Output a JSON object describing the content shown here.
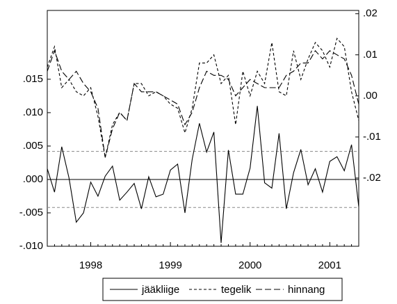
{
  "chart_data": {
    "type": "line",
    "categories": [
      null,
      null,
      null,
      null,
      null,
      null,
      "1998",
      null,
      null,
      null,
      null,
      null,
      null,
      null,
      null,
      null,
      null,
      "1999",
      null,
      null,
      null,
      null,
      null,
      null,
      null,
      null,
      null,
      null,
      "2000",
      null,
      null,
      null,
      null,
      null,
      null,
      null,
      null,
      null,
      null,
      "2001",
      null,
      null,
      null,
      null
    ],
    "series": [
      {
        "name": "jääkliige",
        "color": "#000000",
        "line_style": "solid",
        "axis": "y",
        "values": [
          0.0016,
          -0.0019,
          0.0049,
          0.0002,
          -0.0064,
          -0.005,
          -0.0004,
          -0.0025,
          0.0005,
          0.002,
          -0.0031,
          -0.0019,
          -0.0006,
          -0.0044,
          0.0004,
          -0.0026,
          -0.0022,
          0.0014,
          0.0023,
          -0.005,
          0.003,
          0.0084,
          0.0041,
          0.0071,
          -0.0095,
          0.0044,
          -0.0022,
          -0.0022,
          0.0017,
          0.011,
          -0.0005,
          -0.0013,
          0.0069,
          -0.0044,
          0.001,
          0.0045,
          -0.0008,
          0.0016,
          -0.0019,
          0.0027,
          0.0034,
          0.0013,
          0.0052,
          -0.0041
        ]
      },
      {
        "name": "tegelik",
        "color": "#000000",
        "line_style": "short-dash",
        "axis": "y2",
        "values": [
          0.007,
          0.012,
          0.002,
          0.004,
          0.001,
          0.0,
          0.002,
          -0.005,
          -0.015,
          -0.007,
          -0.004,
          -0.006,
          0.003,
          0.003,
          0.0,
          0.001,
          0.0,
          -0.002,
          -0.003,
          -0.009,
          -0.003,
          0.008,
          0.008,
          0.01,
          0.003,
          0.005,
          -0.007,
          0.006,
          0.0,
          0.006,
          0.003,
          0.013,
          0.001,
          0.0,
          0.011,
          0.004,
          0.009,
          0.013,
          0.011,
          0.007,
          0.014,
          0.012,
          0.001,
          -0.006
        ]
      },
      {
        "name": "hinnang",
        "color": "#000000",
        "line_style": "long-dash",
        "axis": "y2",
        "values": [
          0.006,
          0.011,
          0.006,
          0.004,
          0.006,
          0.003,
          0.001,
          -0.003,
          -0.015,
          -0.008,
          -0.004,
          -0.006,
          0.003,
          0.001,
          0.001,
          0.001,
          0.0,
          -0.001,
          -0.002,
          -0.007,
          -0.004,
          0.002,
          0.006,
          0.005,
          0.005,
          0.004,
          0.0,
          0.002,
          0.004,
          0.003,
          0.002,
          0.002,
          0.002,
          0.005,
          0.006,
          0.008,
          0.008,
          0.011,
          0.009,
          0.011,
          0.01,
          0.009,
          0.005,
          -0.002
        ]
      }
    ],
    "reference_lines": [
      {
        "value": 0.0042,
        "color": "#888888",
        "line_style": "short-dash"
      },
      {
        "value": 0,
        "color": "#000000",
        "line_style": "solid"
      },
      {
        "value": -0.0042,
        "color": "#888888",
        "line_style": "short-dash"
      }
    ],
    "ylim": [
      -0.01,
      0.0253
    ],
    "yticks": [
      {
        "value": -0.01,
        "label": "-.010"
      },
      {
        "value": -0.005,
        "label": "-.005"
      },
      {
        "value": 0,
        "label": ".000"
      },
      {
        "value": 0.005,
        "label": ".005"
      },
      {
        "value": 0.01,
        "label": ".010"
      },
      {
        "value": 0.015,
        "label": ".015"
      }
    ],
    "y2lim": [
      -0.0366,
      0.0208
    ],
    "y2ticks": [
      {
        "value": -0.02,
        "label": "-.02"
      },
      {
        "value": -0.01,
        "label": "-.01"
      },
      {
        "value": 0,
        "label": ".00"
      },
      {
        "value": 0.01,
        "label": ".01"
      },
      {
        "value": 0.02,
        "label": ".02"
      }
    ],
    "legend": "bottom"
  }
}
